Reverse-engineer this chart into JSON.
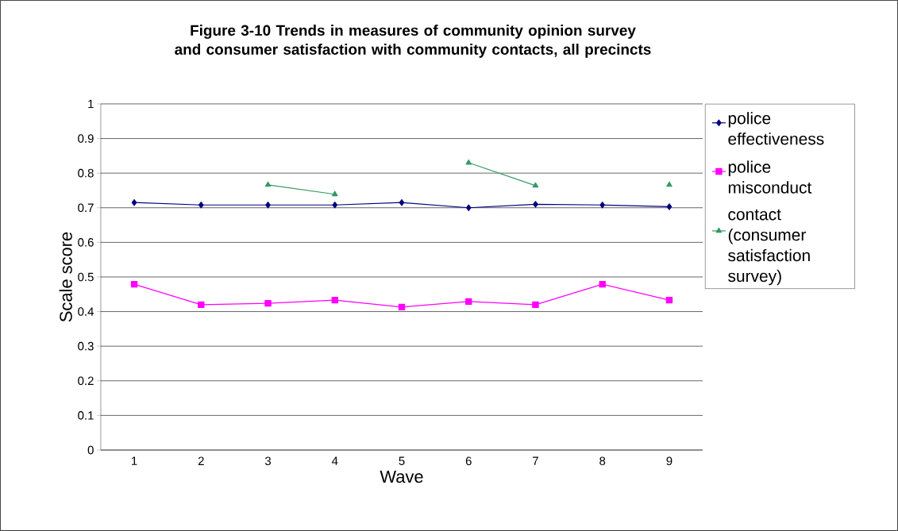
{
  "chart_data": {
    "type": "line",
    "title": "Figure 3-10 Trends in measures of community opinion survey and consumer satisfaction with community contacts, all precincts",
    "xlabel": "Wave",
    "ylabel": "Scale score",
    "categories": [
      "1",
      "2",
      "3",
      "4",
      "5",
      "6",
      "7",
      "8",
      "9"
    ],
    "series": [
      {
        "name": "police effectiveness",
        "color": "#000080",
        "marker": "diamond",
        "values": [
          0.715,
          0.708,
          0.708,
          0.708,
          0.715,
          0.7,
          0.71,
          0.708,
          0.703
        ]
      },
      {
        "name": "police misconduct",
        "color": "#ff00ff",
        "marker": "square",
        "values": [
          0.479,
          0.42,
          0.424,
          0.433,
          0.413,
          0.429,
          0.42,
          0.479,
          0.433
        ]
      },
      {
        "name": "contact (consumer satisfaction survey)",
        "color": "#339966",
        "marker": "triangle",
        "values": [
          null,
          null,
          0.766,
          0.739,
          null,
          0.83,
          0.764,
          null,
          0.766
        ]
      }
    ],
    "ylim": [
      0,
      1
    ],
    "yticks": [
      0,
      0.1,
      0.2,
      0.3,
      0.4,
      0.5,
      0.6,
      0.7,
      0.8,
      0.9,
      1
    ],
    "grid": "y",
    "legend": "right",
    "line_style": "solid"
  }
}
